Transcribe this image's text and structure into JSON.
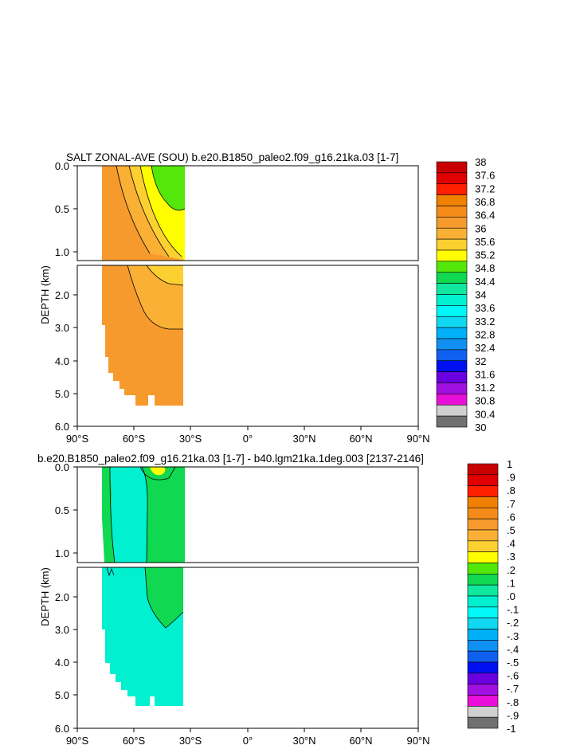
{
  "chart_data": [
    {
      "type": "contour",
      "title": "SALT ZONAL-AVE (SOU) b.e20.B1850_paleo2.f09_g16.21ka.03 [1-7]",
      "ylabel": "DEPTH (km)",
      "x_ticks": [
        "90°S",
        "60°S",
        "30°S",
        "0°",
        "30°N",
        "60°N",
        "90°N"
      ],
      "xlim": [
        -90,
        90
      ],
      "y_ticks_upper": [
        "0.0",
        "0.5",
        "1.0"
      ],
      "y_ticks_lower": [
        "2.0",
        "3.0",
        "4.0",
        "5.0",
        "6.0"
      ],
      "ylim": [
        0,
        6
      ],
      "colorbar_labels": [
        "38",
        "37.6",
        "37.2",
        "36.8",
        "36.4",
        "36",
        "35.6",
        "35.2",
        "34.8",
        "34.4",
        "34",
        "33.6",
        "33.2",
        "32.8",
        "32.4",
        "32",
        "31.6",
        "31.2",
        "30.8",
        "30.4",
        "30"
      ],
      "colorbar_colors": [
        "#c80000",
        "#e00000",
        "#ff2000",
        "#f08000",
        "#f58c1a",
        "#f79a2e",
        "#f9b035",
        "#fcd030",
        "#ffff00",
        "#54e80a",
        "#10d850",
        "#10e8a0",
        "#00f0d0",
        "#00f8f8",
        "#10d8f0",
        "#00b0f8",
        "#1090f0",
        "#1060f0",
        "#0010f0",
        "#6a00e0",
        "#a010e0",
        "#e810d8",
        "#d0d0d0",
        "#707070"
      ],
      "regions": [
        {
          "label": "35.6-36.0",
          "color": "#f79a2e"
        },
        {
          "label": "35.2-35.6",
          "color": "#f9b035"
        },
        {
          "label": "34.8-35.2",
          "color": "#ffff00"
        },
        {
          "label": "34.4-34.8",
          "color": "#54e80a"
        }
      ]
    },
    {
      "type": "contour",
      "title": "b.e20.B1850_paleo2.f09_g16.21ka.03 [1-7] - b40.lgm21ka.1deg.003 [2137-2146]",
      "ylabel": "DEPTH (km)",
      "x_ticks": [
        "90°S",
        "60°S",
        "30°S",
        "0°",
        "30°N",
        "60°N",
        "90°N"
      ],
      "xlim": [
        -90,
        90
      ],
      "y_ticks_upper": [
        "0.0",
        "0.5",
        "1.0"
      ],
      "y_ticks_lower": [
        "2.0",
        "3.0",
        "4.0",
        "5.0",
        "6.0"
      ],
      "ylim": [
        0,
        6
      ],
      "colorbar_labels": [
        "1",
        ".9",
        ".8",
        ".7",
        ".6",
        ".5",
        ".4",
        ".3",
        ".2",
        ".1",
        ".0",
        "-.1",
        "-.2",
        "-.3",
        "-.4",
        "-.5",
        "-.6",
        "-.7",
        "-.8",
        "-.9",
        "-1"
      ],
      "colorbar_colors": [
        "#c80000",
        "#e00000",
        "#ff2000",
        "#f08000",
        "#f58c1a",
        "#f79a2e",
        "#f9b035",
        "#fcd030",
        "#ffff00",
        "#54e80a",
        "#10d850",
        "#10e8a0",
        "#00f0d0",
        "#00f8f8",
        "#10d8f0",
        "#00b0f8",
        "#1090f0",
        "#1060f0",
        "#0010f0",
        "#6a00e0",
        "#a010e0",
        "#e810d8",
        "#d0d0d0",
        "#707070"
      ],
      "regions": [
        {
          "label": "0.0-0.1",
          "color": "#10d850"
        },
        {
          "label": "-0.1-0.0",
          "color": "#00f0d0"
        },
        {
          "label": "0.2-0.3",
          "color": "#ffff00"
        }
      ]
    }
  ]
}
